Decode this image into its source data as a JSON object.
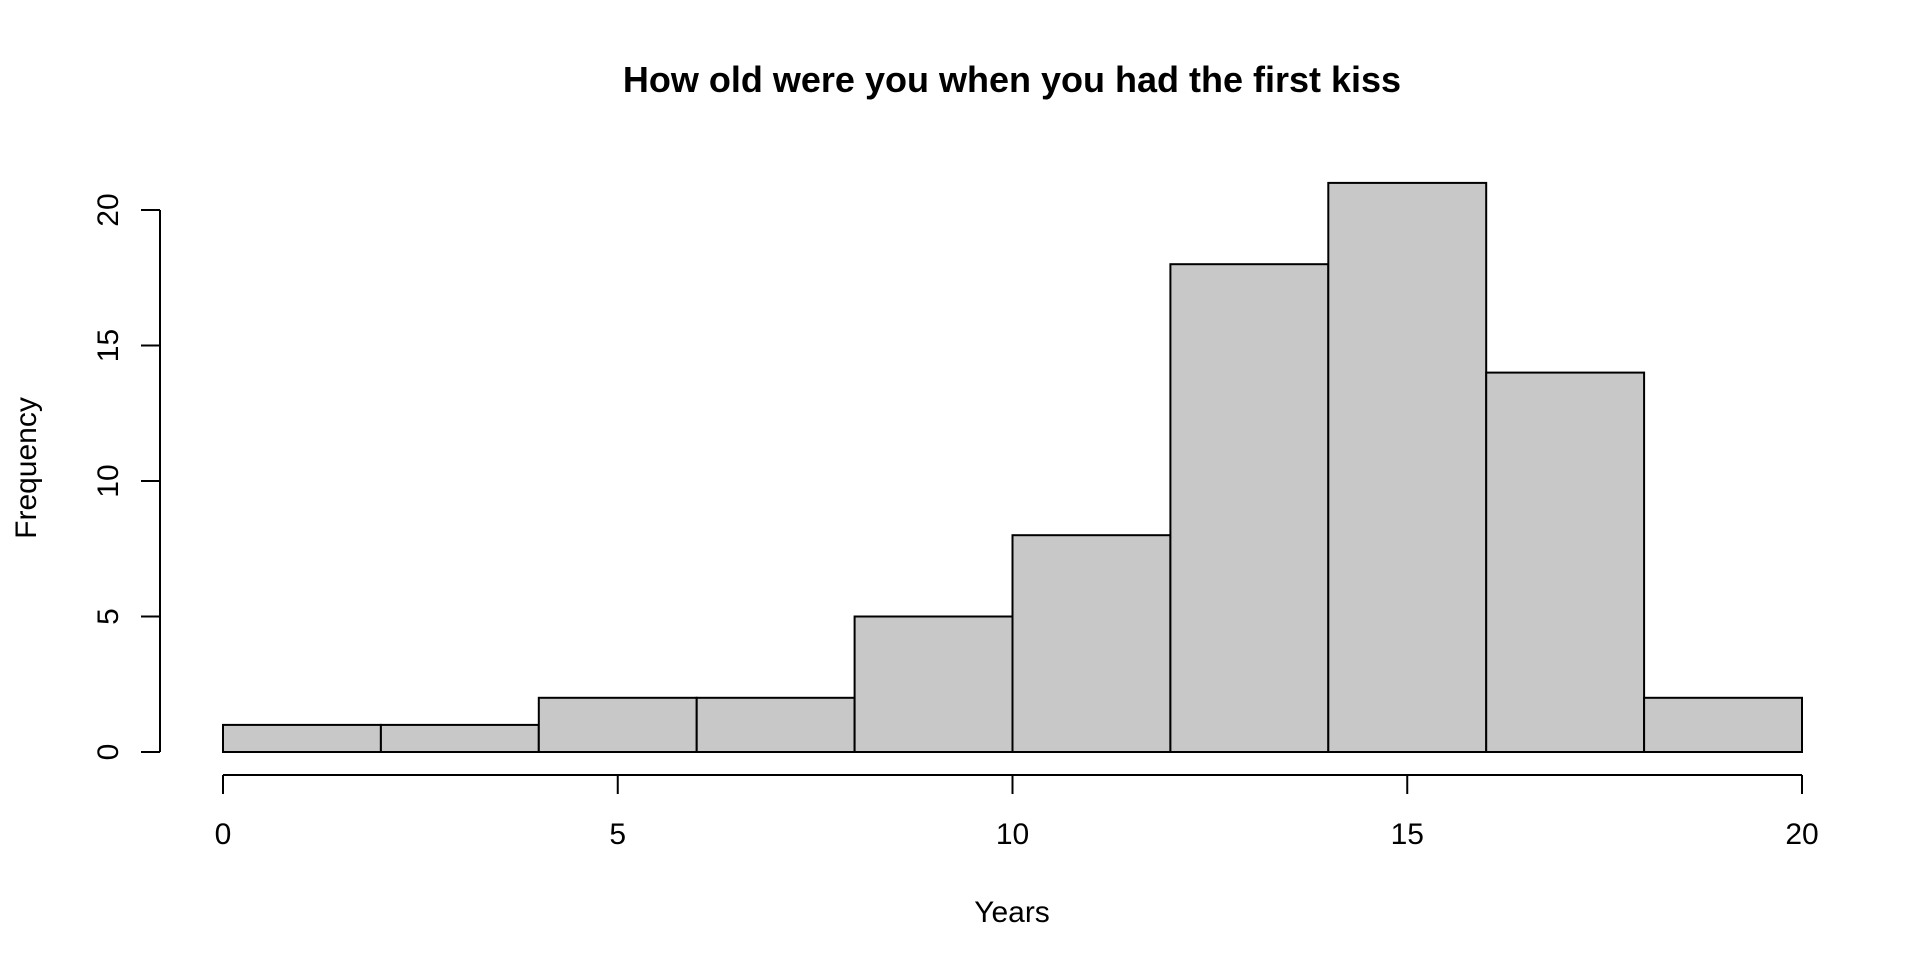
{
  "chart_data": {
    "type": "bar",
    "subtype": "histogram",
    "title": "How old were you when you had the first kiss",
    "xlabel": "Years",
    "ylabel": "Frequency",
    "bins": [
      {
        "start": 0,
        "end": 2,
        "count": 1
      },
      {
        "start": 2,
        "end": 4,
        "count": 1
      },
      {
        "start": 4,
        "end": 6,
        "count": 2
      },
      {
        "start": 6,
        "end": 8,
        "count": 2
      },
      {
        "start": 8,
        "end": 10,
        "count": 5
      },
      {
        "start": 10,
        "end": 12,
        "count": 8
      },
      {
        "start": 12,
        "end": 14,
        "count": 18
      },
      {
        "start": 14,
        "end": 16,
        "count": 21
      },
      {
        "start": 16,
        "end": 18,
        "count": 14
      },
      {
        "start": 18,
        "end": 20,
        "count": 2
      }
    ],
    "x_ticks": [
      "0",
      "5",
      "10",
      "15",
      "20"
    ],
    "y_ticks": [
      "0",
      "5",
      "10",
      "15",
      "20"
    ],
    "xlim": [
      0,
      20
    ],
    "ylim": [
      0,
      21
    ],
    "bar_color": "#c8c8c8",
    "edge_color": "#000000",
    "grid": false,
    "legend": "none"
  }
}
